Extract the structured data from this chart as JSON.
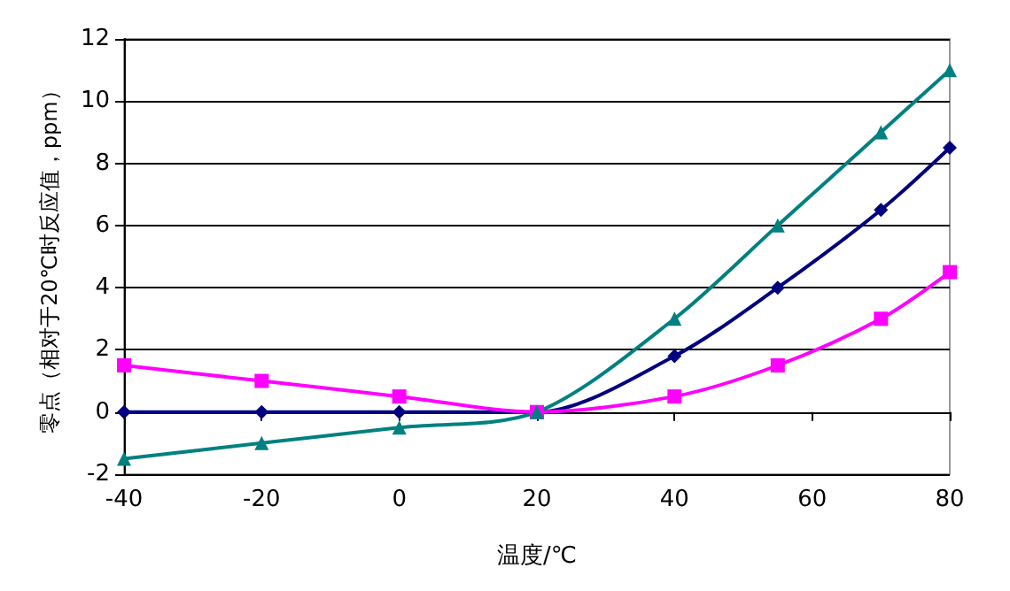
{
  "chart_data": {
    "type": "line",
    "xlabel": "温度/℃",
    "ylabel": "零点（相对于20℃时反应值，ppm）",
    "x": [
      -40,
      -20,
      0,
      20,
      40,
      55,
      70,
      80
    ],
    "series": [
      {
        "color": "#000080",
        "marker": "diamond",
        "values": [
          0,
          0,
          0,
          0,
          1.8,
          4,
          6.5,
          8.5
        ]
      },
      {
        "color": "#ff00ff",
        "marker": "square",
        "values": [
          1.5,
          1,
          0.5,
          0,
          0.5,
          1.5,
          3,
          4.5
        ]
      },
      {
        "color": "#008080",
        "marker": "triangle",
        "values": [
          -1.5,
          -1,
          -0.5,
          0,
          3,
          6,
          9,
          11
        ]
      }
    ],
    "xlim": [
      -40,
      80
    ],
    "xticks": [
      -40,
      -20,
      0,
      20,
      40,
      60,
      80
    ],
    "ylim": [
      -2,
      12
    ],
    "yticks": [
      -2,
      0,
      2,
      4,
      6,
      8,
      10,
      12
    ],
    "grid": "y",
    "line_style": "solid"
  }
}
